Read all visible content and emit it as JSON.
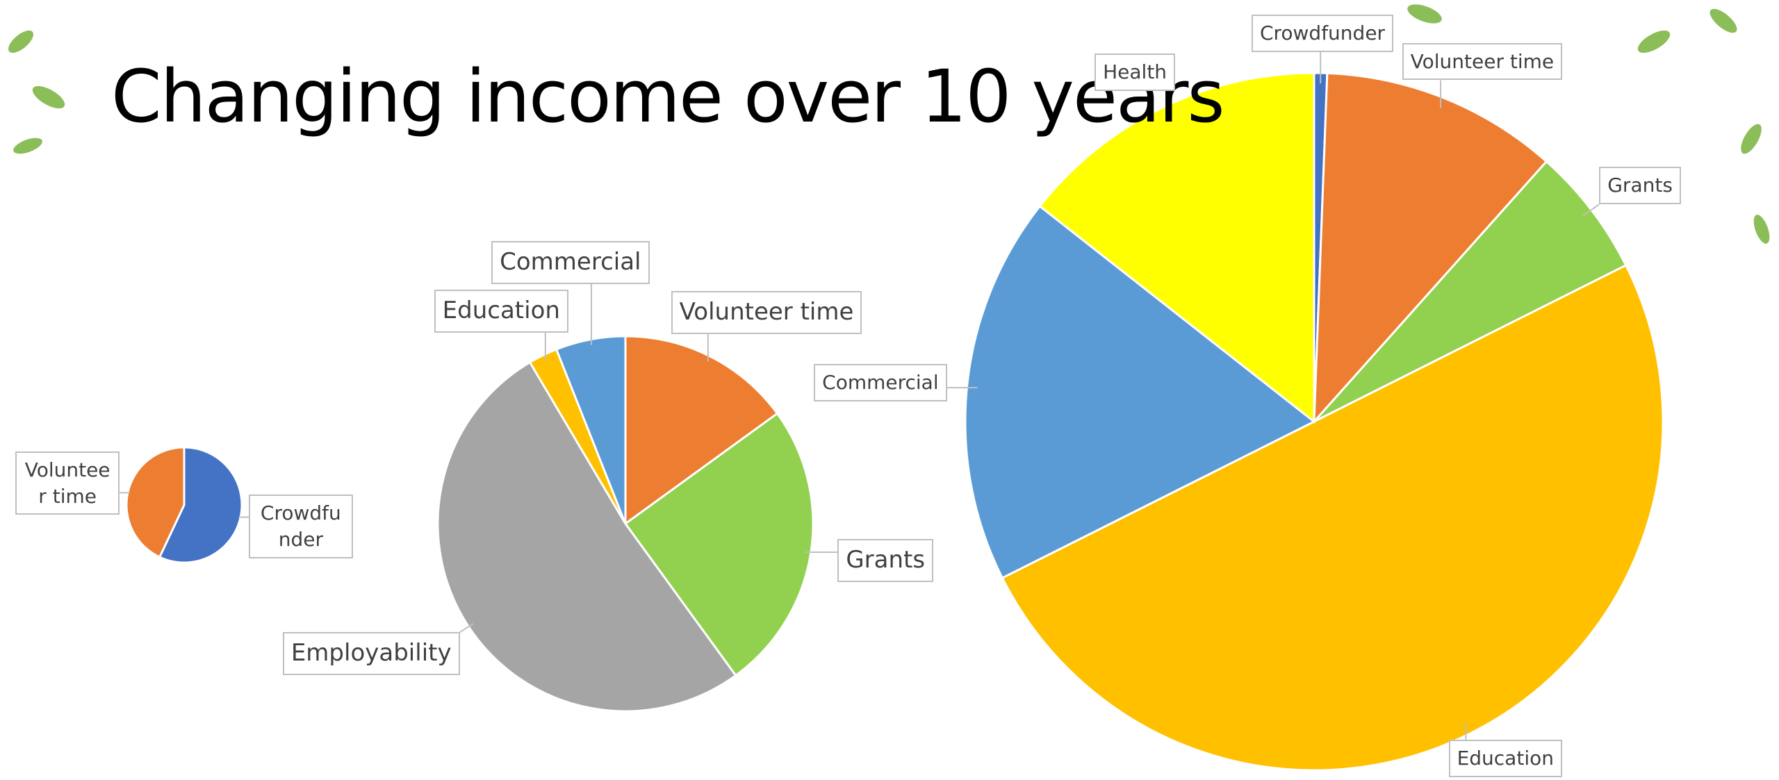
{
  "title": "Changing income over 10 years",
  "chart_data": [
    {
      "type": "pie",
      "categories": [
        "Crowdfunder",
        "Volunteer time"
      ],
      "values": [
        57,
        43
      ],
      "colors": [
        "#4472c4",
        "#ed7d31"
      ]
    },
    {
      "type": "pie",
      "categories": [
        "Volunteer time",
        "Grants",
        "Employability",
        "Education",
        "Commercial"
      ],
      "values": [
        15,
        25,
        51.5,
        2.5,
        6
      ],
      "colors": [
        "#ed7d31",
        "#92d050",
        "#a5a5a5",
        "#ffc000",
        "#5b9bd5"
      ]
    },
    {
      "type": "pie",
      "categories": [
        "Crowdfunder",
        "Volunteer time",
        "Grants",
        "Education",
        "Commercial",
        "Health"
      ],
      "values": [
        0.6,
        11,
        6,
        50,
        18,
        14.4
      ],
      "colors": [
        "#4472c4",
        "#ed7d31",
        "#92d050",
        "#ffc000",
        "#5b9bd5",
        "#ffff00"
      ]
    }
  ]
}
